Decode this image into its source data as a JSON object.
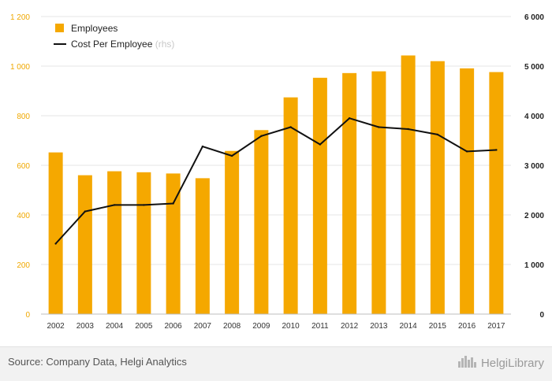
{
  "chart_data": {
    "type": "bar+line",
    "categories": [
      "2002",
      "2003",
      "2004",
      "2005",
      "2006",
      "2007",
      "2008",
      "2009",
      "2010",
      "2011",
      "2012",
      "2013",
      "2014",
      "2015",
      "2016",
      "2017"
    ],
    "series": [
      {
        "name": "Employees",
        "type": "bar",
        "axis": "left",
        "color": "#f5a800",
        "values": [
          652,
          560,
          576,
          572,
          567,
          548,
          658,
          742,
          874,
          953,
          972,
          979,
          1043,
          1020,
          991,
          976
        ]
      },
      {
        "name": "Cost Per Employee",
        "name_suffix": "(rhs)",
        "type": "line",
        "axis": "right",
        "color": "#111111",
        "values": [
          1420,
          2070,
          2200,
          2200,
          2230,
          3380,
          3190,
          3590,
          3770,
          3420,
          3950,
          3770,
          3730,
          3620,
          3280,
          3310
        ]
      }
    ],
    "y_left": {
      "min": 0,
      "max": 1200,
      "ticks": [
        "0",
        "200",
        "400",
        "600",
        "800",
        "1 000",
        "1 200"
      ],
      "tick_values": [
        0,
        200,
        400,
        600,
        800,
        1000,
        1200
      ],
      "color": "#f0a800"
    },
    "y_right": {
      "min": 0,
      "max": 6000,
      "ticks": [
        "0",
        "1 000",
        "2 000",
        "3 000",
        "4 000",
        "5 000",
        "6 000"
      ],
      "tick_values": [
        0,
        1000,
        2000,
        3000,
        4000,
        5000,
        6000
      ],
      "color": "#222222"
    },
    "grid": true,
    "legend_position": "top-left"
  },
  "footer": {
    "source": "Source: Company Data, Helgi Analytics",
    "brand": "HelgiLibrary"
  },
  "icons": {
    "brand_logo": "city-skyline-icon"
  }
}
